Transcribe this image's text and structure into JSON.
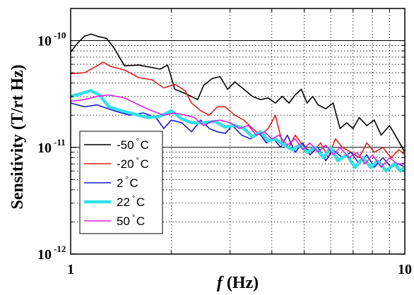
{
  "chart_data": {
    "type": "line",
    "xscale": "log",
    "yscale": "log",
    "xlim": [
      1,
      10
    ],
    "ylim": [
      1e-12,
      2e-10
    ],
    "grid": true,
    "legend_position": "bottom-left",
    "xlabel": {
      "italic": "f",
      "rest": " (Hz)"
    },
    "ylabel": "Sensitivity (T/rt Hz)",
    "x_ticks": [
      {
        "value": 1,
        "label": "1"
      },
      {
        "value": 10,
        "label": "10"
      }
    ],
    "y_ticks": [
      {
        "value": 1e-10,
        "base": "10",
        "exp": "-10"
      },
      {
        "value": 1e-11,
        "base": "10",
        "exp": "-11"
      },
      {
        "value": 1e-12,
        "base": "10",
        "exp": "-12"
      }
    ],
    "series": [
      {
        "name": "-50",
        "unit": "°C",
        "color": "#000000",
        "width": 1.6,
        "points": [
          [
            1.0,
            7.8e-11
          ],
          [
            1.05,
            9.5e-11
          ],
          [
            1.1,
            1.1e-10
          ],
          [
            1.15,
            1.15e-10
          ],
          [
            1.2,
            1.1e-10
          ],
          [
            1.28,
            1.05e-10
          ],
          [
            1.35,
            8.5e-11
          ],
          [
            1.45,
            5.8e-11
          ],
          [
            1.6,
            5.9e-11
          ],
          [
            1.75,
            5.6e-11
          ],
          [
            1.85,
            5.4e-11
          ],
          [
            1.95,
            5.9e-11
          ],
          [
            2.05,
            3.5e-11
          ],
          [
            2.2,
            3.2e-11
          ],
          [
            2.4,
            2.8e-11
          ],
          [
            2.5,
            3.8e-11
          ],
          [
            2.65,
            4.4e-11
          ],
          [
            2.8,
            4.6e-11
          ],
          [
            2.95,
            3.5e-11
          ],
          [
            3.1,
            4.1e-11
          ],
          [
            3.3,
            3.5e-11
          ],
          [
            3.5,
            3e-11
          ],
          [
            3.7,
            2.8e-11
          ],
          [
            3.9,
            2.9e-11
          ],
          [
            4.1,
            2.6e-11
          ],
          [
            4.3,
            3e-11
          ],
          [
            4.5,
            2.6e-11
          ],
          [
            4.7,
            3.1e-11
          ],
          [
            4.9,
            3.5e-11
          ],
          [
            5.1,
            2.6e-11
          ],
          [
            5.3,
            3e-11
          ],
          [
            5.5,
            2.5e-11
          ],
          [
            5.8,
            2.3e-11
          ],
          [
            6.1,
            2.6e-11
          ],
          [
            6.4,
            1.5e-11
          ],
          [
            6.7,
            1.7e-11
          ],
          [
            7.0,
            1.5e-11
          ],
          [
            7.3,
            1.9e-11
          ],
          [
            7.7,
            1.6e-11
          ],
          [
            8.1,
            1.8e-11
          ],
          [
            8.5,
            1.3e-11
          ],
          [
            9.0,
            1.6e-11
          ],
          [
            9.5,
            1.2e-11
          ],
          [
            10.0,
            9e-12
          ]
        ]
      },
      {
        "name": "-20",
        "unit": "°C",
        "color": "#e0201b",
        "width": 1.6,
        "points": [
          [
            1.0,
            4.9e-11
          ],
          [
            1.1,
            5e-11
          ],
          [
            1.2,
            5.8e-11
          ],
          [
            1.25,
            6.3e-11
          ],
          [
            1.32,
            5.7e-11
          ],
          [
            1.45,
            5.3e-11
          ],
          [
            1.6,
            4.5e-11
          ],
          [
            1.75,
            4.3e-11
          ],
          [
            1.9,
            3.6e-11
          ],
          [
            2.05,
            3.9e-11
          ],
          [
            2.2,
            3.4e-11
          ],
          [
            2.3,
            2.6e-11
          ],
          [
            2.45,
            2.2e-11
          ],
          [
            2.6,
            2e-11
          ],
          [
            2.75,
            2.4e-11
          ],
          [
            2.9,
            2.4e-11
          ],
          [
            3.1,
            2e-11
          ],
          [
            3.3,
            1.8e-11
          ],
          [
            3.5,
            1.5e-11
          ],
          [
            3.7,
            1.3e-11
          ],
          [
            3.9,
            1.5e-11
          ],
          [
            4.1,
            2e-11
          ],
          [
            4.3,
            1.1e-11
          ],
          [
            4.5,
            1e-11
          ],
          [
            4.7,
            1.3e-11
          ],
          [
            5.0,
            1e-11
          ],
          [
            5.3,
            9e-12
          ],
          [
            5.6,
            1.1e-11
          ],
          [
            5.9,
            8e-12
          ],
          [
            6.2,
            1.2e-11
          ],
          [
            6.5,
            1e-11
          ],
          [
            6.9,
            9e-12
          ],
          [
            7.3,
            8e-12
          ],
          [
            7.7,
            1.1e-11
          ],
          [
            8.1,
            9e-12
          ],
          [
            8.6,
            1e-11
          ],
          [
            9.1,
            8e-12
          ],
          [
            9.6,
            9.5e-12
          ],
          [
            10.0,
            8.5e-12
          ]
        ]
      },
      {
        "name": "2",
        "unit": "°C",
        "color": "#1a1acc",
        "width": 1.6,
        "points": [
          [
            1.0,
            2.6e-11
          ],
          [
            1.1,
            2.4e-11
          ],
          [
            1.2,
            2.5e-11
          ],
          [
            1.35,
            2.2e-11
          ],
          [
            1.5,
            2e-11
          ],
          [
            1.65,
            2.1e-11
          ],
          [
            1.8,
            1.9e-11
          ],
          [
            1.9,
            1.5e-11
          ],
          [
            2.0,
            1.8e-11
          ],
          [
            2.15,
            1.7e-11
          ],
          [
            2.3,
            1.4e-11
          ],
          [
            2.45,
            1.8e-11
          ],
          [
            2.6,
            1.5e-11
          ],
          [
            2.75,
            1.4e-11
          ],
          [
            2.9,
            1.35e-11
          ],
          [
            3.05,
            1.6e-11
          ],
          [
            3.25,
            1.3e-11
          ],
          [
            3.45,
            1.2e-11
          ],
          [
            3.65,
            1.4e-11
          ],
          [
            3.85,
            1.1e-11
          ],
          [
            4.05,
            1.2e-11
          ],
          [
            4.25,
            1e-11
          ],
          [
            4.45,
            1.3e-11
          ],
          [
            4.7,
            9e-12
          ],
          [
            4.95,
            1.1e-11
          ],
          [
            5.2,
            8.5e-12
          ],
          [
            5.5,
            1e-11
          ],
          [
            5.8,
            7.5e-12
          ],
          [
            6.1,
            9.5e-12
          ],
          [
            6.5,
            8e-12
          ],
          [
            6.9,
            9e-12
          ],
          [
            7.3,
            7e-12
          ],
          [
            7.7,
            8.5e-12
          ],
          [
            8.1,
            6.5e-12
          ],
          [
            8.6,
            8e-12
          ],
          [
            9.1,
            6.5e-12
          ],
          [
            9.6,
            7e-12
          ],
          [
            10.0,
            6.5e-12
          ]
        ]
      },
      {
        "name": "22",
        "unit": "°C",
        "color": "#33e0e8",
        "width": 4.5,
        "points": [
          [
            1.0,
            3e-11
          ],
          [
            1.08,
            3.2e-11
          ],
          [
            1.15,
            3.4e-11
          ],
          [
            1.22,
            3.1e-11
          ],
          [
            1.3,
            2.4e-11
          ],
          [
            1.42,
            2.2e-11
          ],
          [
            1.55,
            2.05e-11
          ],
          [
            1.7,
            1.9e-11
          ],
          [
            1.85,
            1.95e-11
          ],
          [
            2.0,
            2.2e-11
          ],
          [
            2.15,
            1.85e-11
          ],
          [
            2.3,
            1.7e-11
          ],
          [
            2.5,
            1.7e-11
          ],
          [
            2.7,
            1.75e-11
          ],
          [
            2.9,
            1.55e-11
          ],
          [
            3.1,
            1.6e-11
          ],
          [
            3.3,
            1.5e-11
          ],
          [
            3.5,
            1.25e-11
          ],
          [
            3.7,
            1.4e-11
          ],
          [
            3.9,
            1.15e-11
          ],
          [
            4.1,
            1.2e-11
          ],
          [
            4.35,
            1.05e-11
          ],
          [
            4.6,
            9.5e-12
          ],
          [
            4.85,
            1.05e-11
          ],
          [
            5.1,
            9e-12
          ],
          [
            5.4,
            1e-11
          ],
          [
            5.7,
            8e-12
          ],
          [
            6.0,
            1e-11
          ],
          [
            6.3,
            7.5e-12
          ],
          [
            6.7,
            8.5e-12
          ],
          [
            7.1,
            6.5e-12
          ],
          [
            7.5,
            8e-12
          ],
          [
            7.9,
            6.5e-12
          ],
          [
            8.3,
            7.5e-12
          ],
          [
            8.8,
            6e-12
          ],
          [
            9.3,
            7e-12
          ],
          [
            9.7,
            6e-12
          ],
          [
            10.0,
            6.5e-12
          ]
        ]
      },
      {
        "name": "50",
        "unit": "°C",
        "color": "#e020e0",
        "width": 1.6,
        "points": [
          [
            1.0,
            2.7e-11
          ],
          [
            1.1,
            2.8e-11
          ],
          [
            1.2,
            3e-11
          ],
          [
            1.3,
            3.1e-11
          ],
          [
            1.45,
            2.9e-11
          ],
          [
            1.6,
            2.5e-11
          ],
          [
            1.75,
            2.2e-11
          ],
          [
            1.9,
            2e-11
          ],
          [
            2.05,
            2.1e-11
          ],
          [
            2.2,
            2e-11
          ],
          [
            2.35,
            1.9e-11
          ],
          [
            2.5,
            1.6e-11
          ],
          [
            2.65,
            1.75e-11
          ],
          [
            2.8,
            1.8e-11
          ],
          [
            3.0,
            1.7e-11
          ],
          [
            3.2,
            1.5e-11
          ],
          [
            3.4,
            1.6e-11
          ],
          [
            3.6,
            1.3e-11
          ],
          [
            3.8,
            1.4e-11
          ],
          [
            4.0,
            1.2e-11
          ],
          [
            4.2,
            1.3e-11
          ],
          [
            4.45,
            1.05e-11
          ],
          [
            4.7,
            1.2e-11
          ],
          [
            4.95,
            9.5e-12
          ],
          [
            5.2,
            1.1e-11
          ],
          [
            5.5,
            9e-12
          ],
          [
            5.8,
            1.05e-11
          ],
          [
            6.1,
            8.5e-12
          ],
          [
            6.4,
            1e-11
          ],
          [
            6.8,
            8e-12
          ],
          [
            7.2,
            9e-12
          ],
          [
            7.6,
            7e-12
          ],
          [
            8.0,
            8.5e-12
          ],
          [
            8.5,
            6.5e-12
          ],
          [
            9.0,
            8e-12
          ],
          [
            9.5,
            7e-12
          ],
          [
            10.0,
            7e-12
          ]
        ]
      }
    ]
  }
}
